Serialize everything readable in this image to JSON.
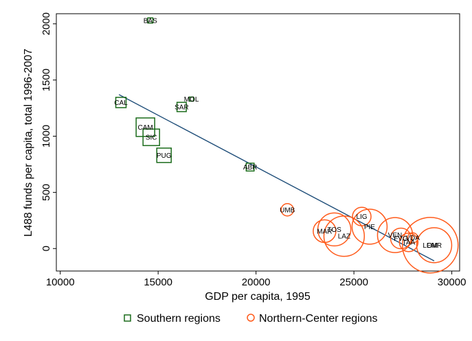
{
  "chart_data": {
    "type": "scatter",
    "xlabel": "GDP per capita, 1995",
    "ylabel": "L488 funds per capita, total 1996-2007",
    "xlim": [
      9800,
      30400
    ],
    "ylim": [
      -200,
      2090
    ],
    "xticks": [
      10000,
      15000,
      20000,
      25000,
      30000
    ],
    "yticks": [
      0,
      500,
      1000,
      1500,
      2000
    ],
    "grid": false,
    "legend_position": "bottom",
    "colors": {
      "southern": "#1a6b1a",
      "northern": "#ff5a1a",
      "fit": "#1f4e79"
    },
    "series": [
      {
        "name": "Southern regions",
        "marker": "square",
        "points": [
          {
            "label": "BAS",
            "x": 14600,
            "y": 2030,
            "w": 0.25
          },
          {
            "label": "CAL",
            "x": 13100,
            "y": 1300,
            "w": 0.5
          },
          {
            "label": "MOL",
            "x": 16700,
            "y": 1330,
            "w": 0.2
          },
          {
            "label": "SAR",
            "x": 16200,
            "y": 1260,
            "w": 0.45
          },
          {
            "label": "CAM",
            "x": 14350,
            "y": 1080,
            "w": 0.9
          },
          {
            "label": "SIC",
            "x": 14650,
            "y": 990,
            "w": 0.8
          },
          {
            "label": "PUG",
            "x": 15300,
            "y": 830,
            "w": 0.7
          },
          {
            "label": "ABR",
            "x": 19700,
            "y": 725,
            "w": 0.38
          }
        ]
      },
      {
        "name": "Northern-Center regions",
        "marker": "circle",
        "points": [
          {
            "label": "UMB",
            "x": 21600,
            "y": 345,
            "w": 0.3
          },
          {
            "label": "LIG",
            "x": 25400,
            "y": 285,
            "w": 0.45
          },
          {
            "label": "PIE",
            "x": 25800,
            "y": 195,
            "w": 0.85
          },
          {
            "label": "MAR",
            "x": 23500,
            "y": 155,
            "w": 0.55
          },
          {
            "label": "TOS",
            "x": 24000,
            "y": 170,
            "w": 0.8
          },
          {
            "label": "LAZ",
            "x": 24500,
            "y": 110,
            "w": 0.98
          },
          {
            "label": "VEN",
            "x": 27100,
            "y": 120,
            "w": 0.85
          },
          {
            "label": "FVG",
            "x": 27400,
            "y": 90,
            "w": 0.5
          },
          {
            "label": "VDA",
            "x": 28000,
            "y": 95,
            "w": 0.25
          },
          {
            "label": "TAA",
            "x": 27800,
            "y": 55,
            "w": 0.45
          },
          {
            "label": "LOM",
            "x": 28900,
            "y": 30,
            "w": 1.35
          },
          {
            "label": "EMR",
            "x": 29100,
            "y": 30,
            "w": 0.85
          }
        ]
      }
    ],
    "fit_line": {
      "x": [
        13000,
        29100
      ],
      "y": [
        1370,
        -110
      ]
    }
  }
}
